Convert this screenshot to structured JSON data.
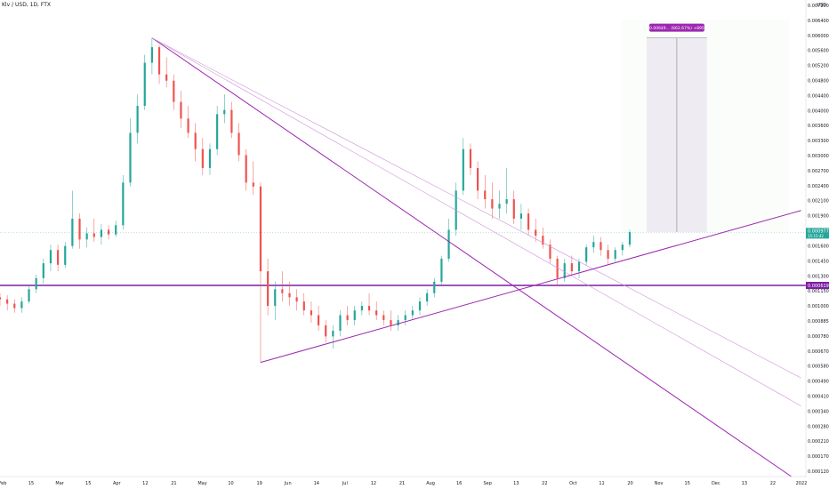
{
  "header": {
    "symbol": "Klv / USD, 1D, FTX"
  },
  "price_axis": {
    "currency": "USD",
    "ticks": [
      "0.0072000",
      "0.0064000",
      "0.0060000",
      "0.0056000",
      "0.0052000",
      "0.0048000",
      "0.0044000",
      "0.0040000",
      "0.0036000",
      "0.0033000",
      "0.0030000",
      "0.0027000",
      "0.0024000",
      "0.0021000",
      "0.0019000",
      "0.0017500",
      "0.0016000",
      "0.0014500",
      "0.0013000",
      "0.0011500",
      "0.0010000",
      "0.0008850",
      "0.0007800",
      "0.0006700",
      "0.0005800",
      "0.0004900",
      "0.0004100",
      "0.0003400",
      "0.0002800",
      "0.0002100",
      "0.0001700",
      "0.0001200"
    ],
    "last_price_label": "0.0009779",
    "last_price_sublabel": "15:15:42",
    "support_label": "0.0006196"
  },
  "time_axis": {
    "labels": [
      "Feb",
      "15",
      "Mar",
      "15",
      "Apr",
      "12",
      "21",
      "May",
      "10",
      "19",
      "Jun",
      "14",
      "Jul",
      "12",
      "21",
      "Aug",
      "16",
      "Sep",
      "13",
      "22",
      "Oct",
      "11",
      "20",
      "Nov",
      "15",
      "Dec",
      "13",
      "22",
      "2022"
    ]
  },
  "projection_label": "0.00649... (662.67%) +895",
  "colors": {
    "up": "#26a69a",
    "down": "#ef5350",
    "trendline": "#9c27b0",
    "trendline_light": "#ce93d8",
    "support": "#7b1fa2",
    "projection_box": "#e9dff2",
    "projection_green": "#f1f8ee"
  },
  "chart_data": {
    "type": "candlestick",
    "title": "Klv / USD, 1D, FTX",
    "xlabel": "",
    "ylabel": "",
    "scale": "log",
    "ylim": [
      0.00012,
      0.0072
    ],
    "x_range": [
      "2021-02-01",
      "2022-01-01"
    ],
    "grid": false,
    "trendlines": [
      {
        "from": [
          "2021-04-05",
          0.0052
        ],
        "to": [
          "2021-12-26",
          0.00012
        ]
      },
      {
        "from": [
          "2021-04-05",
          0.0052
        ],
        "to": [
          "2021-12-30",
          0.00022
        ]
      },
      {
        "from": [
          "2021-04-05",
          0.0052
        ],
        "to": [
          "2021-12-30",
          0.00028
        ]
      },
      {
        "from": [
          "2021-05-20",
          0.00032
        ],
        "to": [
          "2021-12-30",
          0.00118
        ]
      }
    ],
    "support_line": 0.00062,
    "last_price": 0.0009779,
    "projection": {
      "start": "2021-10-27",
      "end": "2021-11-21",
      "low": 0.00098,
      "high": 0.0052
    },
    "candles": [
      [
        "2021-02-01",
        0.00056,
        0.00058,
        0.00052,
        0.00055
      ],
      [
        "2021-02-04",
        0.00055,
        0.00057,
        0.0005,
        0.00053
      ],
      [
        "2021-02-07",
        0.00053,
        0.00055,
        0.00049,
        0.00051
      ],
      [
        "2021-02-10",
        0.00051,
        0.00056,
        0.00049,
        0.00054
      ],
      [
        "2021-02-13",
        0.00054,
        0.00062,
        0.00053,
        0.0006
      ],
      [
        "2021-02-16",
        0.0006,
        0.00068,
        0.00058,
        0.00066
      ],
      [
        "2021-02-19",
        0.00066,
        0.00078,
        0.00063,
        0.00075
      ],
      [
        "2021-02-22",
        0.00075,
        0.00088,
        0.0007,
        0.00084
      ],
      [
        "2021-02-25",
        0.00084,
        0.00088,
        0.0007,
        0.00074
      ],
      [
        "2021-02-28",
        0.00074,
        0.0009,
        0.00072,
        0.00087
      ],
      [
        "2021-03-03",
        0.00087,
        0.0014,
        0.00085,
        0.0011
      ],
      [
        "2021-03-06",
        0.0011,
        0.00115,
        0.00085,
        0.00092
      ],
      [
        "2021-03-09",
        0.00092,
        0.00102,
        0.00086,
        0.00097
      ],
      [
        "2021-03-12",
        0.00097,
        0.0011,
        0.0009,
        0.00094
      ],
      [
        "2021-03-15",
        0.00094,
        0.00105,
        0.00088,
        0.001
      ],
      [
        "2021-03-18",
        0.001,
        0.00104,
        0.00092,
        0.00096
      ],
      [
        "2021-03-21",
        0.00096,
        0.00108,
        0.00094,
        0.00104
      ],
      [
        "2021-03-24",
        0.00104,
        0.0016,
        0.001,
        0.0015
      ],
      [
        "2021-03-27",
        0.0015,
        0.0026,
        0.00145,
        0.0023
      ],
      [
        "2021-03-30",
        0.0023,
        0.0032,
        0.0021,
        0.0029
      ],
      [
        "2021-04-02",
        0.0029,
        0.0045,
        0.0028,
        0.0042
      ],
      [
        "2021-04-05",
        0.0042,
        0.0052,
        0.0038,
        0.0048
      ],
      [
        "2021-04-08",
        0.0048,
        0.0049,
        0.0035,
        0.0038
      ],
      [
        "2021-04-11",
        0.0038,
        0.0044,
        0.0034,
        0.0036
      ],
      [
        "2021-04-14",
        0.0036,
        0.0038,
        0.0028,
        0.003
      ],
      [
        "2021-04-17",
        0.003,
        0.0033,
        0.0024,
        0.0026
      ],
      [
        "2021-04-20",
        0.0026,
        0.0029,
        0.0022,
        0.0023
      ],
      [
        "2021-04-23",
        0.0023,
        0.0025,
        0.0018,
        0.002
      ],
      [
        "2021-04-26",
        0.002,
        0.0022,
        0.0016,
        0.0017
      ],
      [
        "2021-04-29",
        0.0017,
        0.0021,
        0.0016,
        0.002
      ],
      [
        "2021-05-02",
        0.002,
        0.0029,
        0.0019,
        0.0027
      ],
      [
        "2021-05-05",
        0.0027,
        0.0032,
        0.0025,
        0.0028
      ],
      [
        "2021-05-08",
        0.0028,
        0.003,
        0.0022,
        0.0023
      ],
      [
        "2021-05-11",
        0.0023,
        0.0025,
        0.0018,
        0.0019
      ],
      [
        "2021-05-14",
        0.0019,
        0.002,
        0.0014,
        0.0015
      ],
      [
        "2021-05-17",
        0.0015,
        0.0018,
        0.00135,
        0.00145
      ],
      [
        "2021-05-20",
        0.00145,
        0.0015,
        0.00032,
        0.0007
      ],
      [
        "2021-05-23",
        0.0007,
        0.00078,
        0.00048,
        0.00052
      ],
      [
        "2021-05-26",
        0.00052,
        0.00064,
        0.00046,
        0.0006
      ],
      [
        "2021-05-29",
        0.0006,
        0.0007,
        0.00054,
        0.00058
      ],
      [
        "2021-06-01",
        0.00058,
        0.00064,
        0.00052,
        0.00056
      ],
      [
        "2021-06-04",
        0.00056,
        0.0006,
        0.0005,
        0.00054
      ],
      [
        "2021-06-07",
        0.00054,
        0.00058,
        0.00048,
        0.0005
      ],
      [
        "2021-06-10",
        0.0005,
        0.00054,
        0.00045,
        0.00048
      ],
      [
        "2021-06-13",
        0.00048,
        0.00052,
        0.00042,
        0.00044
      ],
      [
        "2021-06-16",
        0.00044,
        0.00046,
        0.00038,
        0.0004
      ],
      [
        "2021-06-19",
        0.0004,
        0.00044,
        0.00036,
        0.00042
      ],
      [
        "2021-06-22",
        0.00042,
        0.0005,
        0.0004,
        0.00048
      ],
      [
        "2021-06-25",
        0.00048,
        0.00052,
        0.00044,
        0.00046
      ],
      [
        "2021-06-28",
        0.00046,
        0.00052,
        0.00044,
        0.0005
      ],
      [
        "2021-07-01",
        0.0005,
        0.00054,
        0.00048,
        0.00052
      ],
      [
        "2021-07-04",
        0.00052,
        0.00058,
        0.00048,
        0.0005
      ],
      [
        "2021-07-07",
        0.0005,
        0.00054,
        0.00046,
        0.00048
      ],
      [
        "2021-07-10",
        0.00048,
        0.0005,
        0.00044,
        0.00046
      ],
      [
        "2021-07-13",
        0.00046,
        0.0005,
        0.00042,
        0.00044
      ],
      [
        "2021-07-16",
        0.00044,
        0.00048,
        0.00042,
        0.00046
      ],
      [
        "2021-07-19",
        0.00046,
        0.0005,
        0.00044,
        0.00048
      ],
      [
        "2021-07-22",
        0.00048,
        0.00052,
        0.00046,
        0.0005
      ],
      [
        "2021-07-25",
        0.0005,
        0.00056,
        0.00048,
        0.00054
      ],
      [
        "2021-07-28",
        0.00054,
        0.0006,
        0.00052,
        0.00058
      ],
      [
        "2021-07-31",
        0.00058,
        0.00066,
        0.00056,
        0.00064
      ],
      [
        "2021-08-03",
        0.00064,
        0.0008,
        0.00062,
        0.00078
      ],
      [
        "2021-08-06",
        0.00078,
        0.0011,
        0.00076,
        0.001
      ],
      [
        "2021-08-09",
        0.001,
        0.0015,
        0.00095,
        0.0014
      ],
      [
        "2021-08-12",
        0.0014,
        0.0022,
        0.00135,
        0.002
      ],
      [
        "2021-08-15",
        0.002,
        0.0021,
        0.0016,
        0.0017
      ],
      [
        "2021-08-18",
        0.0017,
        0.0018,
        0.0013,
        0.0014
      ],
      [
        "2021-08-21",
        0.0014,
        0.0016,
        0.0012,
        0.0013
      ],
      [
        "2021-08-24",
        0.0013,
        0.0015,
        0.0011,
        0.0012
      ],
      [
        "2021-08-27",
        0.0012,
        0.0014,
        0.0011,
        0.00125
      ],
      [
        "2021-08-30",
        0.00125,
        0.0017,
        0.00115,
        0.0013
      ],
      [
        "2021-09-02",
        0.0013,
        0.0014,
        0.00105,
        0.0011
      ],
      [
        "2021-09-05",
        0.0011,
        0.00125,
        0.001,
        0.00115
      ],
      [
        "2021-09-08",
        0.00115,
        0.0012,
        0.00095,
        0.001
      ],
      [
        "2021-09-11",
        0.001,
        0.0011,
        0.0009,
        0.00095
      ],
      [
        "2021-09-14",
        0.00095,
        0.00102,
        0.00085,
        0.00088
      ],
      [
        "2021-09-17",
        0.00088,
        0.00092,
        0.00075,
        0.00078
      ],
      [
        "2021-09-20",
        0.00078,
        0.0008,
        0.00062,
        0.00066
      ],
      [
        "2021-09-23",
        0.00066,
        0.00078,
        0.00064,
        0.00075
      ],
      [
        "2021-09-26",
        0.00075,
        0.0008,
        0.00068,
        0.0007
      ],
      [
        "2021-09-29",
        0.0007,
        0.00078,
        0.00066,
        0.00076
      ],
      [
        "2021-10-02",
        0.00076,
        0.00088,
        0.00074,
        0.00086
      ],
      [
        "2021-10-05",
        0.00086,
        0.00095,
        0.00082,
        0.0009
      ],
      [
        "2021-10-08",
        0.0009,
        0.00094,
        0.0008,
        0.00084
      ],
      [
        "2021-10-11",
        0.00084,
        0.00088,
        0.00074,
        0.00078
      ],
      [
        "2021-10-14",
        0.00078,
        0.00086,
        0.00076,
        0.00084
      ],
      [
        "2021-10-17",
        0.00084,
        0.0009,
        0.0008,
        0.00088
      ],
      [
        "2021-10-20",
        0.00088,
        0.001,
        0.00086,
        0.00098
      ]
    ]
  }
}
